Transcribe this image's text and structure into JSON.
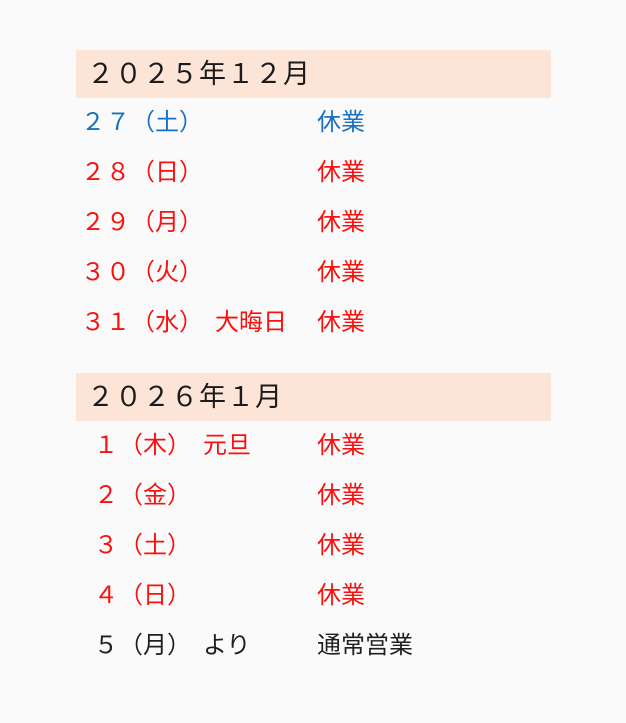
{
  "colors": {
    "page_bg": "#fafafa",
    "band_bg": "#fce4d6",
    "header_text": "#1b1b1b",
    "blue": "#1a70c2",
    "red": "#fa100e",
    "black": "#1f1f1f"
  },
  "sections": [
    {
      "header": "２０２５年１２月",
      "rows": [
        {
          "day": "２７",
          "weekday": "（土）",
          "note": "",
          "status": "休業",
          "tone": "blue"
        },
        {
          "day": "２８",
          "weekday": "（日）",
          "note": "",
          "status": "休業",
          "tone": "red"
        },
        {
          "day": "２９",
          "weekday": "（月）",
          "note": "",
          "status": "休業",
          "tone": "red"
        },
        {
          "day": "３０",
          "weekday": "（火）",
          "note": "",
          "status": "休業",
          "tone": "red"
        },
        {
          "day": "３１",
          "weekday": "（水）",
          "note": "大晦日",
          "status": "休業",
          "tone": "red"
        }
      ]
    },
    {
      "header": "２０２６年１月",
      "rows": [
        {
          "day": "１",
          "weekday": "（木）",
          "note": "元旦",
          "status": "休業",
          "tone": "red"
        },
        {
          "day": "２",
          "weekday": "（金）",
          "note": "",
          "status": "休業",
          "tone": "red"
        },
        {
          "day": "３",
          "weekday": "（土）",
          "note": "",
          "status": "休業",
          "tone": "red"
        },
        {
          "day": "４",
          "weekday": "（日）",
          "note": "",
          "status": "休業",
          "tone": "red"
        },
        {
          "day": "５",
          "weekday": "（月）",
          "note": "より",
          "status": "通常営業",
          "tone": "black"
        }
      ]
    }
  ]
}
